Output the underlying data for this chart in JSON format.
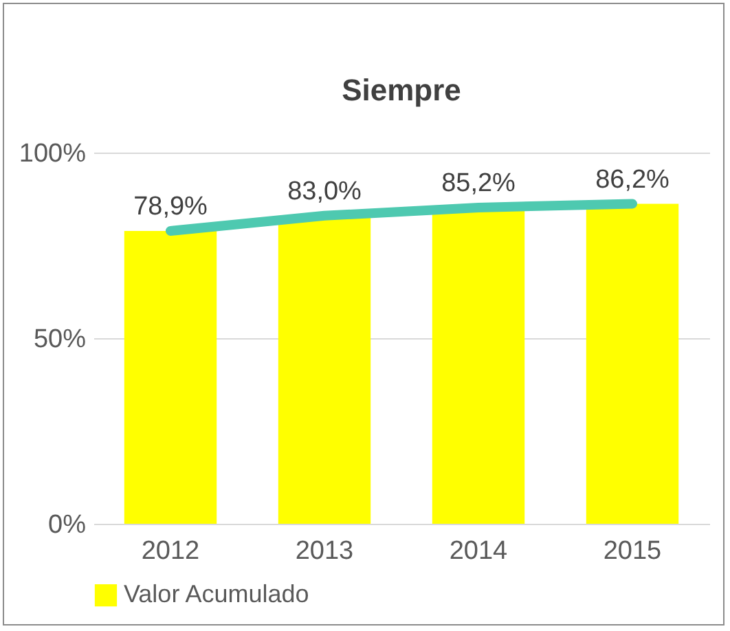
{
  "chart_data": {
    "type": "bar",
    "title": "Siempre",
    "categories": [
      "2012",
      "2013",
      "2014",
      "2015"
    ],
    "series": [
      {
        "name": "Valor Acumulado",
        "color": "#ffff00",
        "values": [
          78.9,
          83.0,
          85.2,
          86.2
        ],
        "value_labels": [
          "78,9%",
          "83,0%",
          "85,2%",
          "86,2%"
        ]
      },
      {
        "type": "line",
        "color": "#4ec9b0",
        "values": [
          78.9,
          83.0,
          85.2,
          86.2
        ]
      }
    ],
    "ylim": [
      0,
      100
    ],
    "yticks": [
      {
        "value": 0,
        "label": "0%"
      },
      {
        "value": 50,
        "label": "50%"
      },
      {
        "value": 100,
        "label": "100%"
      }
    ],
    "grid": "y",
    "legend": "bottom"
  }
}
